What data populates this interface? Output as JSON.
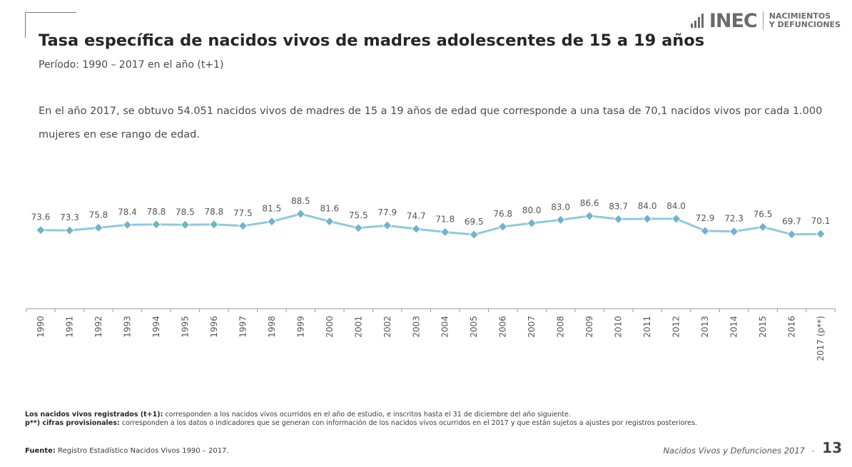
{
  "header": {
    "logo_text": "INEC",
    "logo_sub_1": "NACIMIENTOS",
    "logo_sub_2": "Y DEFUNCIONES",
    "title": "Tasa específica de nacidos vivos de madres adolescentes de 15 a 19 años",
    "subtitle": "Período: 1990 – 2017 en el año (t+1)"
  },
  "intro": "En el año 2017, se obtuvo 54.051 nacidos vivos de madres de 15 a 19 años de edad que corresponde a una tasa de 70,1 nacidos vivos  por cada 1.000 mujeres en ese rango de edad.",
  "chart_data": {
    "type": "line",
    "categories": [
      "1990",
      "1991",
      "1992",
      "1993",
      "1994",
      "1995",
      "1996",
      "1997",
      "1998",
      "1999",
      "2000",
      "2001",
      "2002",
      "2003",
      "2004",
      "2005",
      "2006",
      "2007",
      "2008",
      "2009",
      "2010",
      "2011",
      "2012",
      "2013",
      "2014",
      "2015",
      "2016",
      "2017 (p**)"
    ],
    "values": [
      73.6,
      73.3,
      75.8,
      78.4,
      78.8,
      78.5,
      78.8,
      77.5,
      81.5,
      88.5,
      81.6,
      75.5,
      77.9,
      74.7,
      71.8,
      69.5,
      76.8,
      80.0,
      83.0,
      86.6,
      83.7,
      84.0,
      84.0,
      72.9,
      72.3,
      76.5,
      69.7,
      70.1
    ],
    "value_labels": [
      "73.6",
      "73.3",
      "75.8",
      "78.4",
      "78.8",
      "78.5",
      "78.8",
      "77.5",
      "81.5",
      "88.5",
      "81.6",
      "75.5",
      "77.9",
      "74.7",
      "71.8",
      "69.5",
      "76.8",
      "80.0",
      "83.0",
      "86.6",
      "83.7",
      "84.0",
      "84.0",
      "72.9",
      "72.3",
      "76.5",
      "69.7",
      "70.1"
    ],
    "title": "",
    "xlabel": "",
    "ylabel": "",
    "grid": false,
    "legend": "none",
    "line_color": "#8ec9de",
    "marker_color": "#6fb3cc"
  },
  "notes": {
    "note1_label": "Los nacidos vivos registrados (t+1):",
    "note1_text": " corresponden a los nacidos vivos ocurridos en el año de estudio, e inscritos hasta el 31 de diciembre del año siguiente.",
    "note2_label": "p**) cifras provisionales:",
    "note2_text": " corresponden a los datos o indicadores que se generan con información de los nacidos vivos ocurridos en el 2017  y que están sujetos a ajustes por registros posteriores."
  },
  "footer": {
    "source_label": "Fuente:",
    "source_text": " Registro Estadístico Nacidos Vivos  1990 – 2017.",
    "publication": "Nacidos Vivos  y  Defunciones  2017",
    "page_number": "13"
  }
}
